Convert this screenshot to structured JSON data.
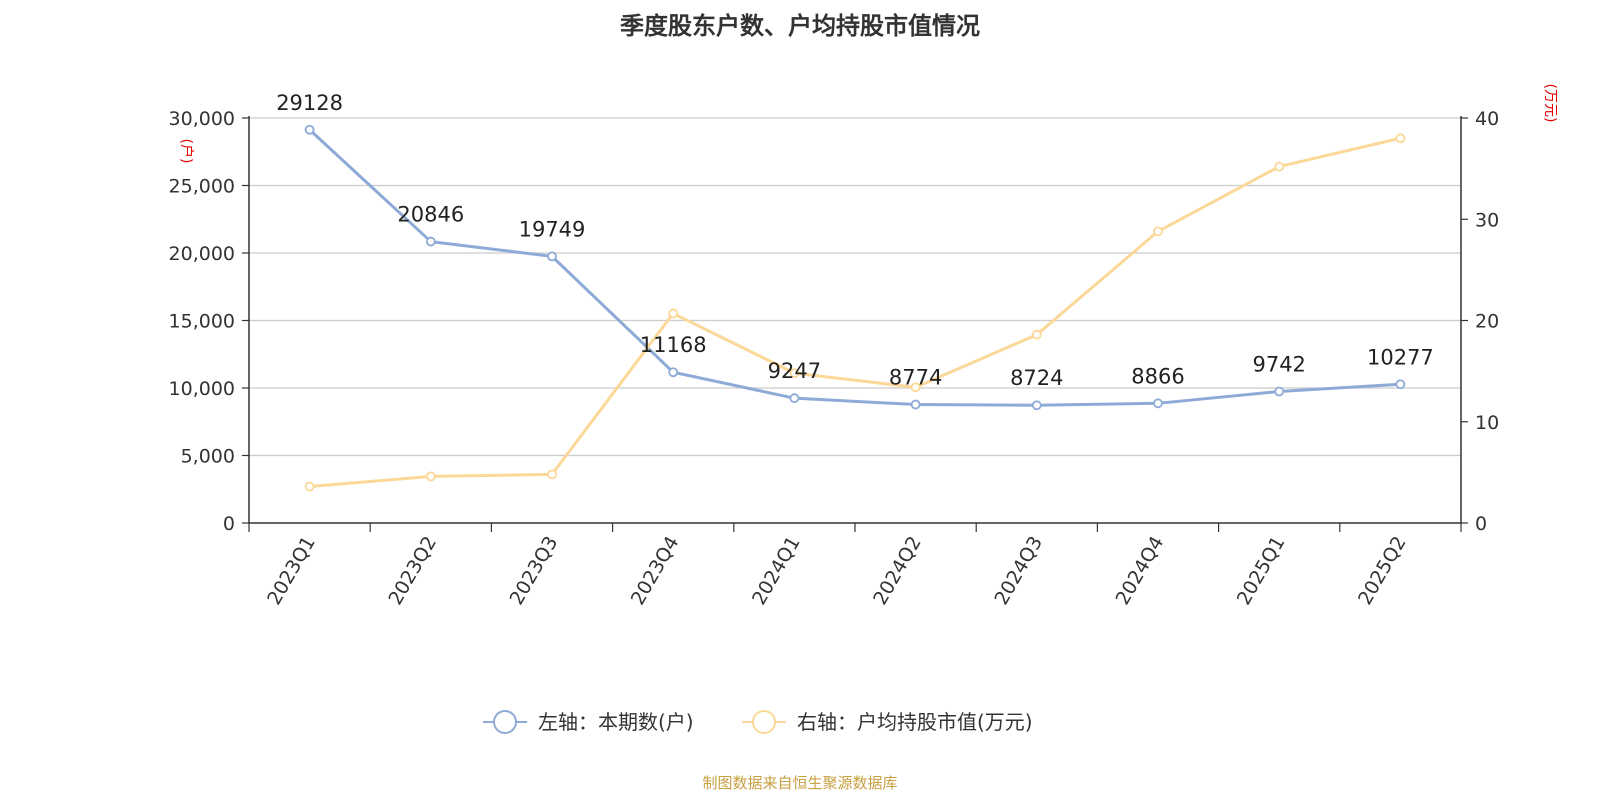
{
  "title": "季度股东户数、户均持股市值情况",
  "source": "制图数据来自恒生聚源数据库",
  "colors": {
    "left_series": "#8eaad6",
    "right_series": "#fcd898",
    "axis": "#333333",
    "grid": "#cccccc",
    "unit": "#e60000"
  },
  "chart_data": {
    "type": "line",
    "title": "季度股东户数、户均持股市值情况",
    "categories": [
      "2023Q1",
      "2023Q2",
      "2023Q3",
      "2023Q4",
      "2024Q1",
      "2024Q2",
      "2024Q3",
      "2024Q4",
      "2025Q1",
      "2025Q2"
    ],
    "left_axis": {
      "unit": "(户)",
      "min": 0,
      "max": 30000,
      "ticks": [
        0,
        5000,
        10000,
        15000,
        20000,
        25000,
        30000
      ],
      "tick_labels": [
        "0",
        "5,000",
        "10,000",
        "15,000",
        "20,000",
        "25,000",
        "30,000"
      ]
    },
    "right_axis": {
      "unit": "(万元)",
      "min": 0,
      "max": 40,
      "ticks": [
        0,
        10,
        20,
        30,
        40
      ],
      "tick_labels": [
        "0",
        "10",
        "20",
        "30",
        "40"
      ]
    },
    "grid": true,
    "legend_position": "bottom",
    "series": [
      {
        "name": "左轴：本期数(户)",
        "axis": "left",
        "values": [
          29128,
          20846,
          19749,
          11168,
          9247,
          8774,
          8724,
          8866,
          9742,
          10277
        ],
        "labels": [
          "29128",
          "20846",
          "19749",
          "11168",
          "9247",
          "8774",
          "8724",
          "8866",
          "9742",
          "10277"
        ]
      },
      {
        "name": "右轴：户均持股市值(万元)",
        "axis": "right",
        "values": [
          3.6,
          4.6,
          4.8,
          20.7,
          14.8,
          13.4,
          18.6,
          28.8,
          35.2,
          38.0
        ]
      }
    ]
  }
}
